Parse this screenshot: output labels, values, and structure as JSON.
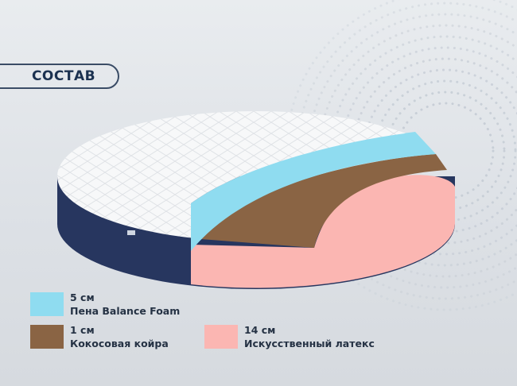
{
  "header": {
    "title": "СОСТАВ"
  },
  "legend": [
    {
      "thickness": "5 см",
      "material": "Пена Balance Foam",
      "color": "#8fdcf0"
    },
    {
      "thickness": "1 см",
      "material": "Кокосовая койра",
      "color": "#8a6444"
    },
    {
      "thickness": "14 см",
      "material": "Искусственный латекс",
      "color": "#fbb6b2"
    }
  ],
  "colors": {
    "cover_side": "#27365f",
    "cover_top": "#f7f8f9",
    "title": "#1b3150"
  }
}
